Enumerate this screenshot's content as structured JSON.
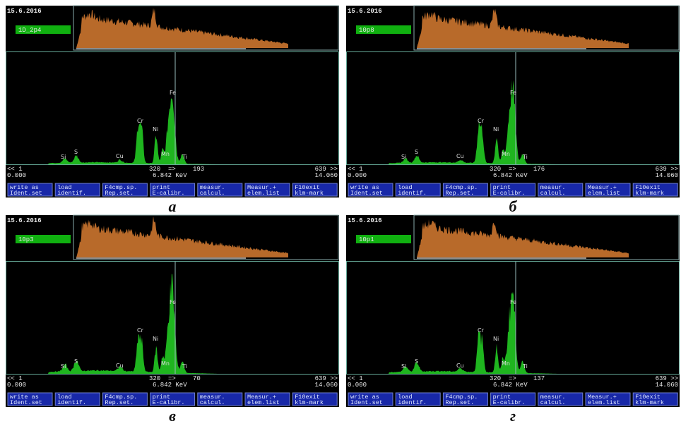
{
  "date": "15.6.2016",
  "elements": [
    "Si",
    "S",
    "Cu",
    "Cr",
    "Ni",
    "Mn",
    "Fe",
    "Ti"
  ],
  "scale": {
    "start_channel": "<< 1",
    "start_energy": "0.000",
    "cursor_channel": "320",
    "arrow": "=>",
    "cursor_energy": "6.842 KeV",
    "end_channel": "639 >>",
    "end_energy": "14.060"
  },
  "buttons": [
    [
      "write as",
      "Ident.set"
    ],
    [
      "load",
      "identif."
    ],
    [
      "F4cmp.sp.",
      "Rep.set."
    ],
    [
      "print",
      "E-calibr."
    ],
    [
      "measur.",
      "calcul."
    ],
    [
      "Measur.+",
      "elem.list"
    ],
    [
      "F10exit",
      "klm-mark"
    ]
  ],
  "panels": [
    {
      "sample": "1D_2p4",
      "counts": "193",
      "caption": "а"
    },
    {
      "sample": "10p8",
      "counts": "176",
      "caption": "б"
    },
    {
      "sample": "10p3",
      "counts": "70",
      "caption": "в"
    },
    {
      "sample": "10p1",
      "counts": "137",
      "caption": "г"
    }
  ]
}
